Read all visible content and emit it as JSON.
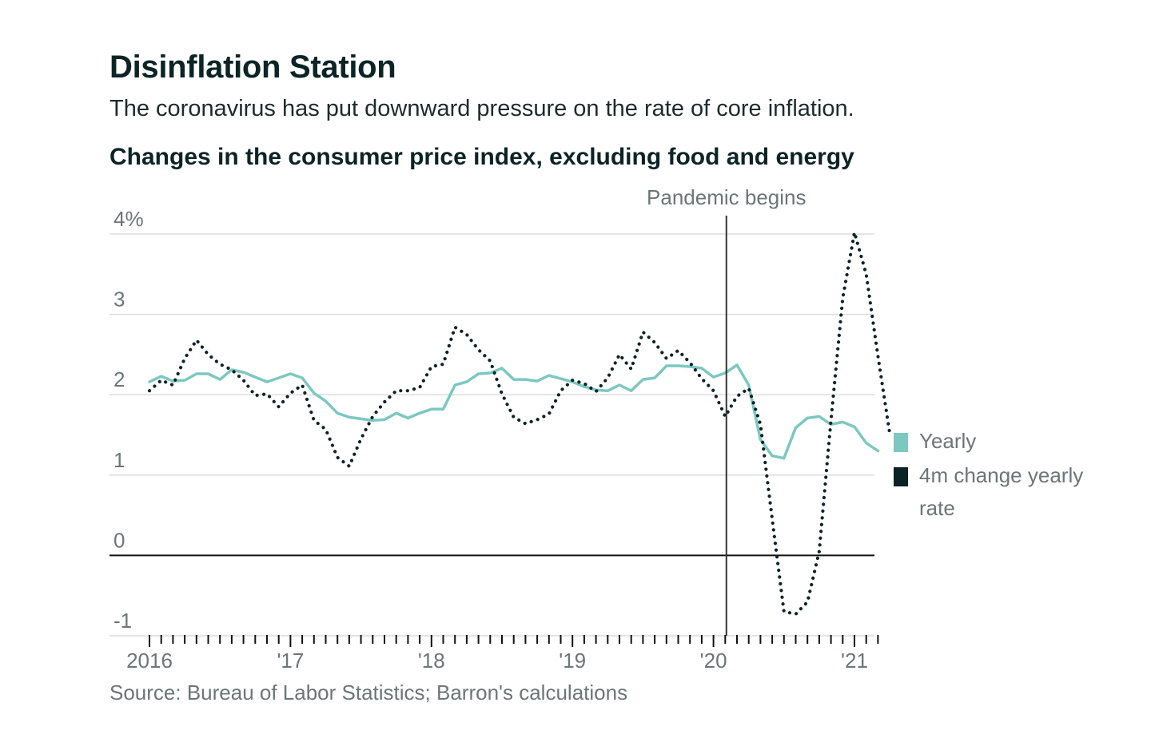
{
  "header": {
    "title": "Disinflation Station",
    "subtitle": "The coronavirus has put downward pressure on the rate of core inflation.",
    "chart_heading": "Changes in the consumer price index, excluding food and energy"
  },
  "footer": {
    "source": "Source: Bureau of Labor Statistics; Barron's calculations"
  },
  "colors": {
    "yearly": "#7cc8c1",
    "four_month": "#0c2326",
    "grid": "#dcdcdc",
    "axis": "#111111",
    "text_muted": "#6c7578"
  },
  "chart_data": {
    "type": "line",
    "xlabel": "",
    "ylabel": "",
    "ylim": [
      -1,
      4
    ],
    "y_ticks": [
      {
        "value": 4,
        "label": "4%"
      },
      {
        "value": 3,
        "label": "3"
      },
      {
        "value": 2,
        "label": "2"
      },
      {
        "value": 1,
        "label": "1"
      },
      {
        "value": 0,
        "label": "0"
      },
      {
        "value": -1,
        "label": "-1"
      }
    ],
    "x_tick_labels": [
      {
        "month_index": 0,
        "label": "2016"
      },
      {
        "month_index": 12,
        "label": "'17"
      },
      {
        "month_index": 24,
        "label": "'18"
      },
      {
        "month_index": 36,
        "label": "'19"
      },
      {
        "month_index": 48,
        "label": "'20"
      },
      {
        "month_index": 60,
        "label": "'21"
      }
    ],
    "x_start": "2016-01",
    "x_end": "2021-02",
    "annotations": [
      {
        "label": "Pandemic begins",
        "month_index": 49.1
      }
    ],
    "series": [
      {
        "name": "Yearly",
        "style": "solid",
        "values": [
          2.16,
          2.23,
          2.17,
          2.18,
          2.26,
          2.26,
          2.19,
          2.31,
          2.28,
          2.22,
          2.16,
          2.21,
          2.26,
          2.21,
          2.02,
          1.92,
          1.77,
          1.72,
          1.7,
          1.68,
          1.69,
          1.77,
          1.71,
          1.77,
          1.82,
          1.82,
          2.12,
          2.16,
          2.26,
          2.27,
          2.33,
          2.19,
          2.19,
          2.17,
          2.24,
          2.2,
          2.16,
          2.1,
          2.06,
          2.05,
          2.12,
          2.05,
          2.19,
          2.21,
          2.36,
          2.36,
          2.35,
          2.33,
          2.22,
          2.27,
          2.37,
          2.12,
          1.44,
          1.24,
          1.21,
          1.59,
          1.71,
          1.73,
          1.63,
          1.66,
          1.6,
          1.4,
          1.3
        ]
      },
      {
        "name": "4m change yearly rate",
        "style": "dotted",
        "values": [
          2.05,
          2.18,
          2.12,
          2.45,
          2.68,
          2.5,
          2.38,
          2.31,
          2.18,
          1.99,
          2.01,
          1.85,
          2.02,
          2.12,
          1.68,
          1.57,
          1.22,
          1.11,
          1.45,
          1.73,
          1.91,
          2.05,
          2.05,
          2.09,
          2.35,
          2.38,
          2.84,
          2.75,
          2.56,
          2.42,
          2.01,
          1.72,
          1.64,
          1.69,
          1.76,
          2.05,
          2.18,
          2.14,
          2.04,
          2.21,
          2.5,
          2.32,
          2.78,
          2.65,
          2.45,
          2.55,
          2.4,
          2.2,
          2.05,
          1.73,
          1.98,
          2.08,
          1.63,
          0.45,
          -0.7,
          -0.73,
          -0.58,
          0.05,
          1.68,
          3.2,
          4.02,
          3.5,
          2.48,
          1.52
        ]
      }
    ]
  }
}
